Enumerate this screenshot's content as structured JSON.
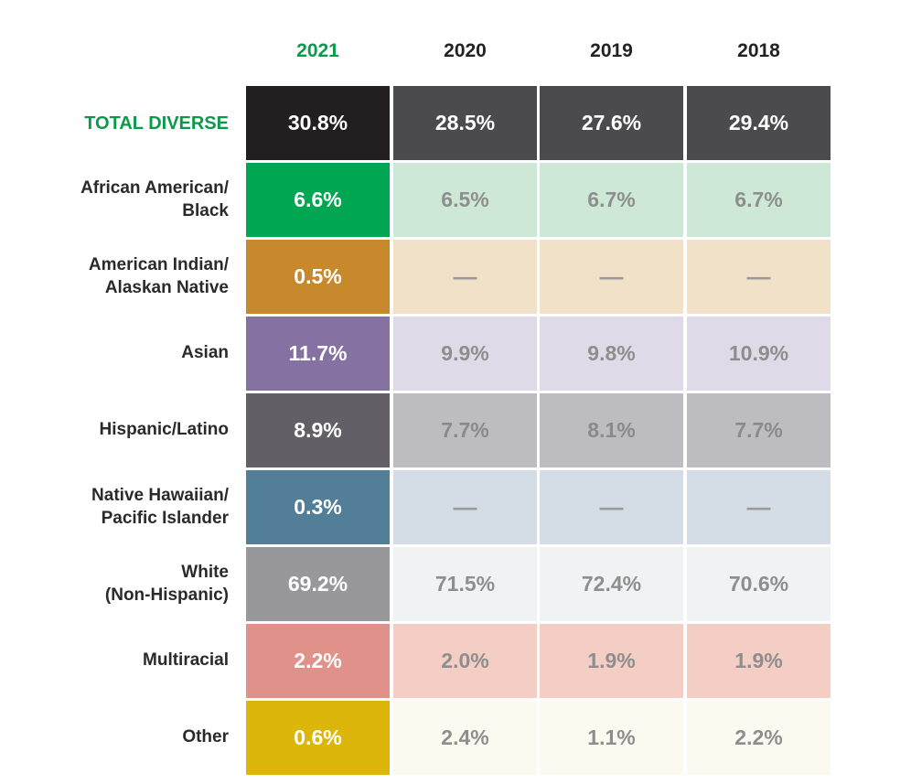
{
  "chart_data": {
    "type": "table",
    "highlight_year": "2021",
    "highlight_color": "#0a9a4a",
    "columns": [
      "2021",
      "2020",
      "2019",
      "2018"
    ],
    "rows": [
      {
        "label": "TOTAL DIVERSE",
        "values": [
          "30.8%",
          "28.5%",
          "27.6%",
          "29.4%"
        ],
        "label_color": "#0a9a4a",
        "primary_color": "#231f20",
        "primary_text": "#ffffff",
        "secondary_color": "#4b4b4d",
        "secondary_text": "#ffffff"
      },
      {
        "label": "African American/\nBlack",
        "values": [
          "6.6%",
          "6.5%",
          "6.7%",
          "6.7%"
        ],
        "label_color": "#2a2a2a",
        "primary_color": "#00a651",
        "primary_text": "#ffffff",
        "secondary_color": "#cde8d6",
        "secondary_text": "#8e8e8e"
      },
      {
        "label": "American Indian/\nAlaskan Native",
        "values": [
          "0.5%",
          "—",
          "—",
          "—"
        ],
        "label_color": "#2a2a2a",
        "primary_color": "#c8892d",
        "primary_text": "#ffffff",
        "secondary_color": "#f1e1c9",
        "secondary_text": "#9a9a9a"
      },
      {
        "label": "Asian",
        "values": [
          "11.7%",
          "9.9%",
          "9.8%",
          "10.9%"
        ],
        "label_color": "#2a2a2a",
        "primary_color": "#8671a3",
        "primary_text": "#ffffff",
        "secondary_color": "#e0d9e8",
        "secondary_text": "#8e8e8e"
      },
      {
        "label": "Hispanic/Latino",
        "values": [
          "8.9%",
          "7.7%",
          "8.1%",
          "7.7%"
        ],
        "label_color": "#2a2a2a",
        "primary_color": "#626066",
        "primary_text": "#ffffff",
        "secondary_color": "#bdbcc0",
        "secondary_text": "#8a8a8a"
      },
      {
        "label": "Native Hawaiian/\nPacific Islander",
        "values": [
          "0.3%",
          "—",
          "—",
          "—"
        ],
        "label_color": "#2a2a2a",
        "primary_color": "#537e98",
        "primary_text": "#ffffff",
        "secondary_color": "#d4dde5",
        "secondary_text": "#9a9a9a"
      },
      {
        "label": "White\n(Non-Hispanic)",
        "values": [
          "69.2%",
          "71.5%",
          "72.4%",
          "70.6%"
        ],
        "label_color": "#2a2a2a",
        "primary_color": "#98989b",
        "primary_text": "#ffffff",
        "secondary_color": "#f1f2f3",
        "secondary_text": "#8e8e8e"
      },
      {
        "label": "Multiracial",
        "values": [
          "2.2%",
          "2.0%",
          "1.9%",
          "1.9%"
        ],
        "label_color": "#2a2a2a",
        "primary_color": "#e09189",
        "primary_text": "#ffffff",
        "secondary_color": "#f4cdc4",
        "secondary_text": "#8e8e8e"
      },
      {
        "label": "Other",
        "values": [
          "0.6%",
          "2.4%",
          "1.1%",
          "2.2%"
        ],
        "label_color": "#2a2a2a",
        "primary_color": "#dcb60a",
        "primary_text": "#ffffff",
        "secondary_color": "#fcf9f0",
        "secondary_text": "#8e8e8e"
      }
    ]
  }
}
